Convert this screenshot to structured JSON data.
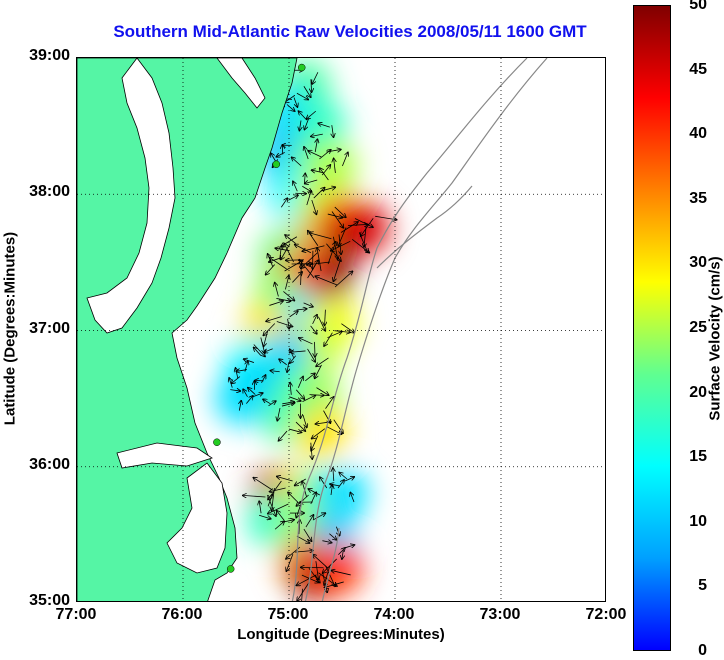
{
  "title": "Southern Mid-Atlantic Raw Velocities 2008/05/11 1600 GMT",
  "xlabel": "Longitude (Degrees:Minutes)",
  "ylabel": "Latitude (Degrees:Minutes)",
  "x_ticks": [
    "77:00",
    "76:00",
    "75:00",
    "74:00",
    "73:00",
    "72:00"
  ],
  "y_ticks": [
    "39:00",
    "38:00",
    "37:00",
    "36:00",
    "35:00"
  ],
  "colorbar": {
    "label": "Surface Velocity (cm/s)",
    "ticks": [
      "50",
      "45",
      "40",
      "35",
      "30",
      "25",
      "20",
      "15",
      "10",
      "5",
      "0"
    ],
    "range": [
      0,
      50
    ],
    "gradient_colors": [
      "#0000ff",
      "#00a0ff",
      "#00ffff",
      "#60ff90",
      "#ffff00",
      "#ff8000",
      "#ff0000",
      "#800000"
    ]
  },
  "colors": {
    "land": "#55f5a5",
    "title": "#1111ee",
    "bathymetry": "#888888",
    "station": "#22cc22"
  },
  "chart_data": {
    "type": "heatmap",
    "title": "Southern Mid-Atlantic Raw Velocities 2008/05/11 1600 GMT",
    "xlabel": "Longitude (Degrees:Minutes)",
    "ylabel": "Latitude (Degrees:Minutes)",
    "xlim": [
      -77,
      -72
    ],
    "ylim": [
      35,
      39
    ],
    "colorbar_label": "Surface Velocity (cm/s)",
    "colorbar_range": [
      0,
      50
    ],
    "grid": true,
    "velocity_points": [
      {
        "lon": -74.85,
        "lat": 38.8,
        "v": 20
      },
      {
        "lon": -75.0,
        "lat": 38.6,
        "v": 12
      },
      {
        "lon": -74.7,
        "lat": 38.5,
        "v": 18
      },
      {
        "lon": -75.05,
        "lat": 38.3,
        "v": 10
      },
      {
        "lon": -74.8,
        "lat": 38.2,
        "v": 20
      },
      {
        "lon": -74.6,
        "lat": 38.2,
        "v": 25
      },
      {
        "lon": -74.95,
        "lat": 38.0,
        "v": 14
      },
      {
        "lon": -74.7,
        "lat": 37.95,
        "v": 26
      },
      {
        "lon": -74.5,
        "lat": 37.8,
        "v": 40
      },
      {
        "lon": -74.3,
        "lat": 37.75,
        "v": 45
      },
      {
        "lon": -74.6,
        "lat": 37.6,
        "v": 48
      },
      {
        "lon": -74.85,
        "lat": 37.6,
        "v": 35
      },
      {
        "lon": -75.05,
        "lat": 37.55,
        "v": 22
      },
      {
        "lon": -74.65,
        "lat": 37.4,
        "v": 50
      },
      {
        "lon": -74.9,
        "lat": 37.4,
        "v": 42
      },
      {
        "lon": -75.1,
        "lat": 37.25,
        "v": 24
      },
      {
        "lon": -74.9,
        "lat": 37.1,
        "v": 12
      },
      {
        "lon": -74.6,
        "lat": 37.05,
        "v": 28
      },
      {
        "lon": -75.2,
        "lat": 37.0,
        "v": 30
      },
      {
        "lon": -74.75,
        "lat": 36.85,
        "v": 26
      },
      {
        "lon": -75.05,
        "lat": 36.8,
        "v": 10
      },
      {
        "lon": -75.35,
        "lat": 36.75,
        "v": 14
      },
      {
        "lon": -75.25,
        "lat": 36.55,
        "v": 8
      },
      {
        "lon": -75.45,
        "lat": 36.5,
        "v": 12
      },
      {
        "lon": -74.95,
        "lat": 36.55,
        "v": 18
      },
      {
        "lon": -74.75,
        "lat": 36.5,
        "v": 24
      },
      {
        "lon": -75.0,
        "lat": 36.35,
        "v": 20
      },
      {
        "lon": -74.7,
        "lat": 36.25,
        "v": 30
      },
      {
        "lon": -75.1,
        "lat": 35.8,
        "v": 48
      },
      {
        "lon": -74.9,
        "lat": 35.8,
        "v": 30
      },
      {
        "lon": -74.7,
        "lat": 35.8,
        "v": 20
      },
      {
        "lon": -74.5,
        "lat": 35.8,
        "v": 12
      },
      {
        "lon": -75.15,
        "lat": 35.6,
        "v": 18
      },
      {
        "lon": -74.85,
        "lat": 35.55,
        "v": 24
      },
      {
        "lon": -74.6,
        "lat": 35.45,
        "v": 10
      },
      {
        "lon": -74.85,
        "lat": 35.3,
        "v": 35
      },
      {
        "lon": -74.75,
        "lat": 35.2,
        "v": 48
      },
      {
        "lon": -74.55,
        "lat": 35.25,
        "v": 40
      }
    ],
    "stations": [
      {
        "lon": -74.88,
        "lat": 38.93
      },
      {
        "lon": -75.12,
        "lat": 38.22
      },
      {
        "lon": -75.68,
        "lat": 36.18
      },
      {
        "lon": -75.55,
        "lat": 35.25
      }
    ]
  }
}
